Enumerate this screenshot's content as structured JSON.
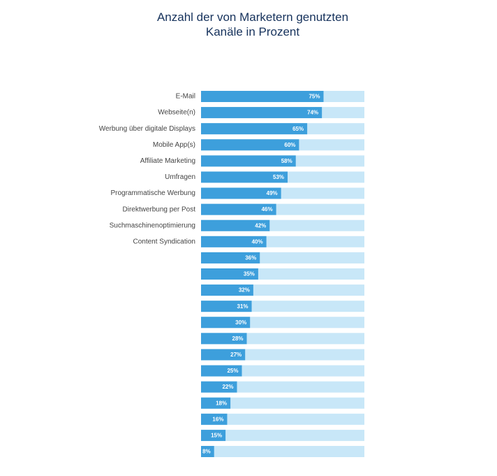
{
  "chart_data": {
    "type": "bar",
    "orientation": "horizontal",
    "title": "Anzahl der von Marketern genutzten Kanäle in Prozent",
    "categories": [
      "E-Mail",
      "Webseite(n)",
      "Werbung über digitale Displays",
      "Mobile App(s)",
      "Affiliate Marketing",
      "Umfragen",
      "Programmatische Werbung",
      "Direktwerbung per Post",
      "Suchmaschinenoptimierung",
      "Content Syndication",
      null,
      null,
      null,
      null,
      null,
      null,
      null,
      null,
      null,
      null,
      null,
      null,
      null
    ],
    "values": [
      75,
      74,
      65,
      60,
      58,
      53,
      49,
      46,
      42,
      40,
      36,
      35,
      32,
      31,
      30,
      28,
      27,
      25,
      22,
      18,
      16,
      15,
      8
    ],
    "value_labels": [
      "75%",
      "74%",
      "65%",
      "60%",
      "58%",
      "53%",
      "49%",
      "46%",
      "42%",
      "40%",
      "36%",
      "35%",
      "32%",
      "31%",
      "30%",
      "28%",
      "27%",
      "25%",
      "22%",
      "18%",
      "16%",
      "15%",
      "8%"
    ],
    "xlim": [
      0,
      100
    ],
    "color": "#3d9fdc",
    "track_color": "#c8e7f8"
  }
}
